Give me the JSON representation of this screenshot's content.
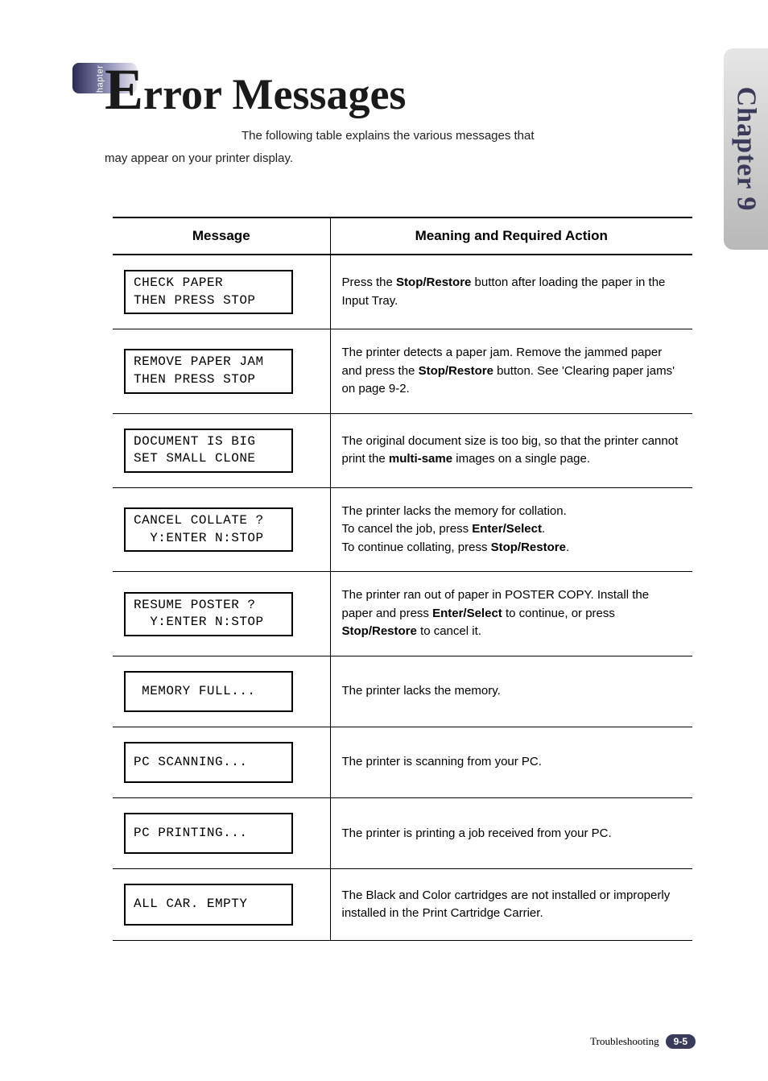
{
  "side_tab": {
    "label": "Chapter 9"
  },
  "chapter_pill": {
    "label": "Chapter 9"
  },
  "heading": {
    "cap": "E",
    "rest": "rror Messages"
  },
  "intro": {
    "line1": "The following table explains the various messages that",
    "line2": "may appear on your printer display."
  },
  "table": {
    "headers": {
      "col1": "Message",
      "col2": "Meaning and Required Action"
    },
    "rows": [
      {
        "lcd": "CHECK PAPER\nTHEN PRESS STOP",
        "multiline": true,
        "meaning_html": "Press the <b>Stop/Restore</b> button after loading the paper in the Input Tray."
      },
      {
        "lcd": "REMOVE PAPER JAM\nTHEN PRESS STOP",
        "multiline": true,
        "meaning_html": "The printer detects a paper jam. Remove the jammed paper and press the <b>Stop/Restore</b> button. See 'Clearing paper jams' on page 9-2."
      },
      {
        "lcd": "DOCUMENT IS BIG\nSET SMALL CLONE",
        "multiline": true,
        "meaning_html": "The original document size is too big, so that the printer cannot print the <b>multi-same</b> images on a single page."
      },
      {
        "lcd": "CANCEL COLLATE ?\n  Y:ENTER N:STOP",
        "multiline": true,
        "meaning_html": "The printer lacks the memory for collation.<br>To cancel the job, press <b>Enter/Select</b>.<br>To continue collating, press <b>Stop/Restore</b>."
      },
      {
        "lcd": "RESUME POSTER ?\n  Y:ENTER N:STOP",
        "multiline": true,
        "meaning_html": "The printer ran out of paper in POSTER COPY. Install the paper and press <b>Enter/Select</b> to continue, or press <b>Stop/Restore</b> to cancel it."
      },
      {
        "lcd": " MEMORY FULL...",
        "multiline": false,
        "meaning_html": "The printer lacks the memory."
      },
      {
        "lcd": "PC SCANNING...",
        "multiline": false,
        "meaning_html": "The printer is scanning from your PC."
      },
      {
        "lcd": "PC PRINTING...",
        "multiline": false,
        "meaning_html": "The printer is printing a job received from your PC."
      },
      {
        "lcd": "ALL CAR. EMPTY",
        "multiline": false,
        "meaning_html": "The Black and Color cartridges are not installed or improperly installed in the Print Cartridge Carrier."
      }
    ]
  },
  "footer": {
    "section": "Troubleshooting",
    "page": "9-5"
  }
}
